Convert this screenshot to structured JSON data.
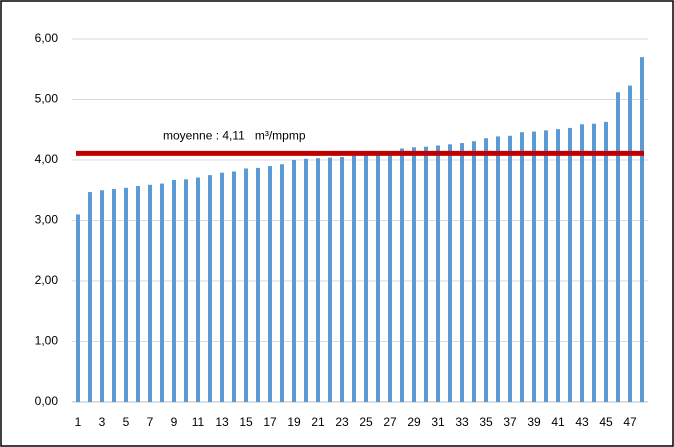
{
  "chart_data": {
    "type": "bar",
    "categories": [
      "1",
      null,
      "3",
      null,
      "5",
      null,
      "7",
      null,
      "9",
      null,
      "11",
      null,
      "13",
      null,
      "15",
      null,
      "17",
      null,
      "19",
      null,
      "21",
      null,
      "23",
      null,
      "25",
      null,
      "27",
      null,
      "29",
      null,
      "31",
      null,
      "33",
      null,
      "35",
      null,
      "37",
      null,
      "39",
      null,
      "41",
      null,
      "43",
      null,
      "45",
      null,
      "47",
      null
    ],
    "values": [
      3.1,
      3.47,
      3.5,
      3.52,
      3.54,
      3.57,
      3.59,
      3.61,
      3.67,
      3.68,
      3.71,
      3.75,
      3.79,
      3.81,
      3.86,
      3.87,
      3.9,
      3.93,
      4.0,
      4.02,
      4.03,
      4.04,
      4.05,
      4.07,
      4.09,
      4.1,
      4.13,
      4.19,
      4.21,
      4.22,
      4.24,
      4.26,
      4.28,
      4.31,
      4.36,
      4.39,
      4.4,
      4.46,
      4.47,
      4.49,
      4.51,
      4.53,
      4.59,
      4.6,
      4.63,
      5.12,
      5.23,
      5.7
    ],
    "color": "#5b9bd5",
    "ylim": [
      0,
      6
    ],
    "yticks": [
      {
        "value": 0,
        "label": "0,00"
      },
      {
        "value": 1,
        "label": "1,00"
      },
      {
        "value": 2,
        "label": "2,00"
      },
      {
        "value": 3,
        "label": "3,00"
      },
      {
        "value": 4,
        "label": "4,00"
      },
      {
        "value": 5,
        "label": "5,00"
      },
      {
        "value": 6,
        "label": "6,00"
      }
    ],
    "grid": true,
    "mean": {
      "value": 4.11,
      "label": "moyenne : 4,11   m³/mpmp",
      "color": "#c00000"
    }
  }
}
